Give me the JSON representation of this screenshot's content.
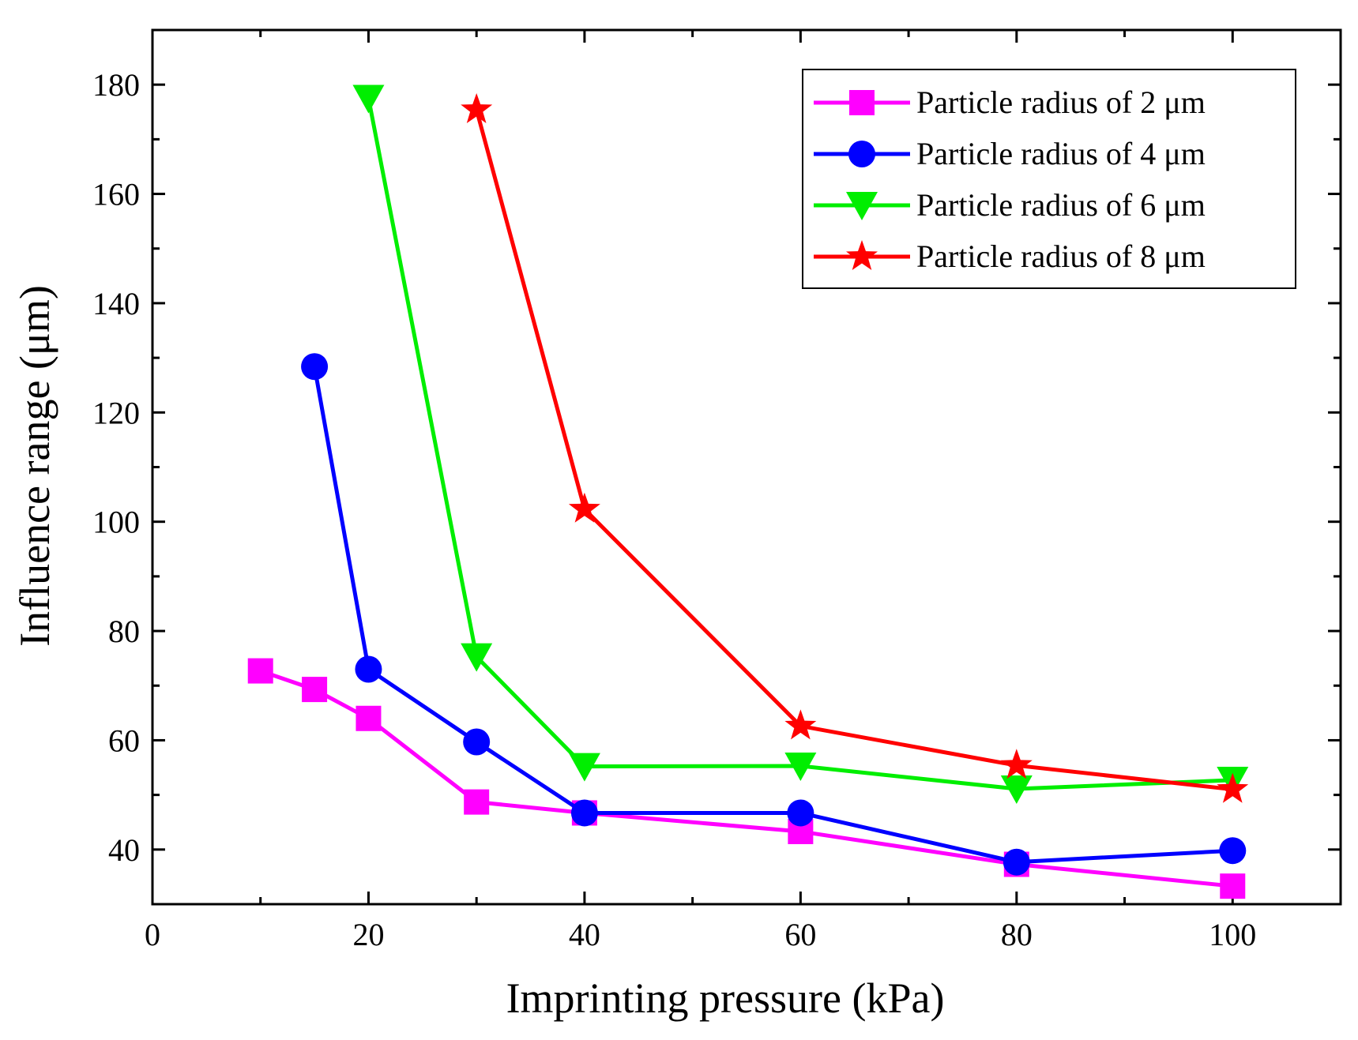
{
  "chart_data": {
    "type": "line",
    "title": "",
    "xlabel": "Imprinting pressure (kPa)",
    "ylabel": "Influence range (μm)",
    "xlim": [
      0,
      110
    ],
    "ylim": [
      30,
      190
    ],
    "xticks": [
      0,
      20,
      40,
      60,
      80,
      100
    ],
    "xtick_labels": [
      "0",
      "20",
      "40",
      "60",
      "80",
      "100"
    ],
    "yticks": [
      40,
      60,
      80,
      100,
      120,
      140,
      160,
      180
    ],
    "ytick_labels": [
      "40",
      "60",
      "80",
      "100",
      "120",
      "140",
      "160",
      "180"
    ],
    "grid": false,
    "legend_position": "top-right",
    "series": [
      {
        "name": "Particle radius of 2 μm",
        "color": "#ff00ff",
        "marker": "square",
        "x": [
          10,
          15,
          20,
          30,
          40,
          60,
          80,
          100
        ],
        "y": [
          72.7,
          69.3,
          64,
          48.7,
          46.7,
          43.3,
          37.3,
          33.3
        ]
      },
      {
        "name": "Particle radius of 4 μm",
        "color": "#0000ff",
        "marker": "circle",
        "x": [
          15,
          20,
          30,
          40,
          60,
          80,
          100
        ],
        "y": [
          128.4,
          73,
          59.7,
          46.7,
          46.7,
          37.7,
          39.8
        ]
      },
      {
        "name": "Particle radius of 6 μm",
        "color": "#00ee00",
        "marker": "triangle-down",
        "x": [
          20,
          30,
          40,
          60,
          80,
          100
        ],
        "y": [
          177.5,
          75.3,
          55.2,
          55.3,
          51.1,
          52.7
        ]
      },
      {
        "name": "Particle radius of 8 μm",
        "color": "#ff0000",
        "marker": "star",
        "x": [
          30,
          40,
          60,
          80,
          100
        ],
        "y": [
          175.4,
          102.3,
          62.6,
          55.4,
          51
        ]
      }
    ]
  }
}
